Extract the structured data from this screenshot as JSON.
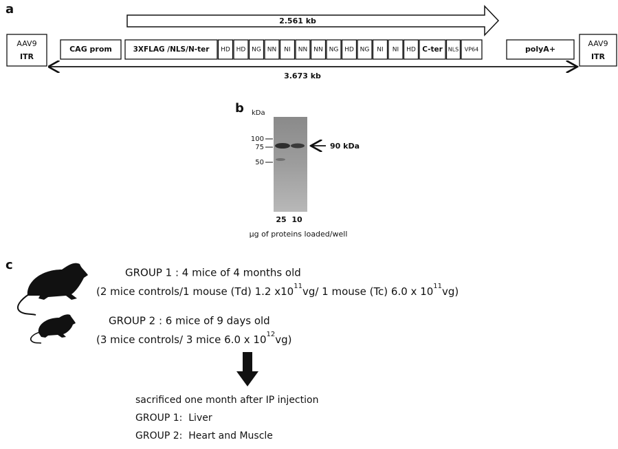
{
  "panel_a": {
    "label": "a",
    "insert_size": "2.561 kb",
    "total_size": "3.673 kb",
    "left_itr": [
      "AAV9",
      "ITR"
    ],
    "promoter": "CAG prom",
    "segments": [
      "3XFLAG /NLS/N-ter",
      "HD",
      "HD",
      "NG",
      "NN",
      "NI",
      "NN",
      "NN",
      "NG",
      "HD",
      "NG",
      "NI",
      "NI",
      "HD",
      "C-ter",
      "NLS",
      "VP64"
    ],
    "polya": "polyA+",
    "right_itr": [
      "AAV9",
      "ITR"
    ]
  },
  "panel_b": {
    "label": "b",
    "unit": "kDa",
    "ladder": [
      "100",
      "75",
      "50"
    ],
    "band_label": "90 kDa",
    "lanes": [
      "25",
      "10"
    ],
    "caption": "μg of proteins loaded/well"
  },
  "panel_c": {
    "label": "c",
    "group1": {
      "title": "GROUP 1 : 4 mice of 4 months old",
      "detail": [
        "(2 mice controls/1 mouse (Td) 1.2 x10",
        "11",
        "vg/ 1 mouse (Tc) 6.0 x 10",
        "11",
        "vg)"
      ]
    },
    "group2": {
      "title": "GROUP 2 : 6 mice of 9 days old",
      "detail": [
        "(3 mice controls/ 3 mice 6.0 x 10",
        "12",
        "vg)"
      ]
    },
    "outcome": [
      "sacrificed one month after IP injection",
      "GROUP 1:  Liver",
      "GROUP 2:  Heart and Muscle"
    ]
  }
}
